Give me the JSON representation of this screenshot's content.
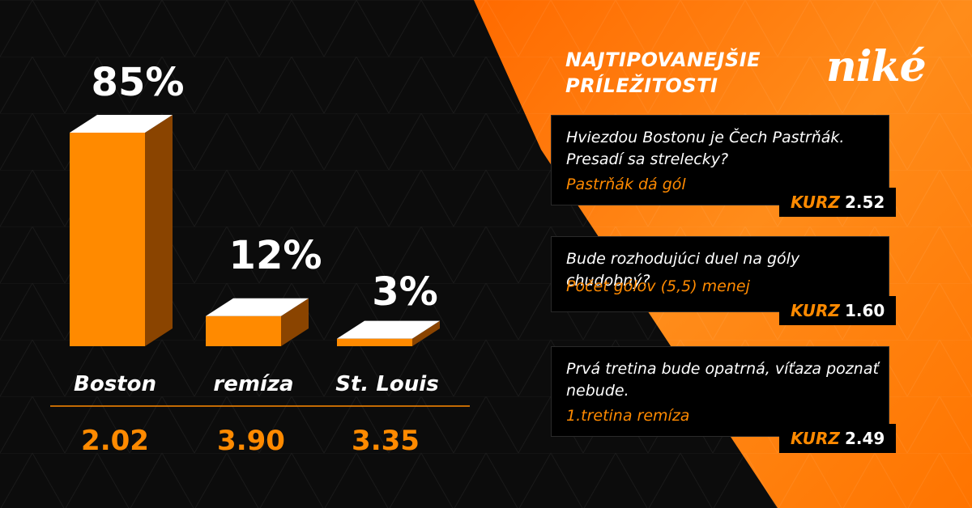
{
  "brand": {
    "logo_text": "niké"
  },
  "headline": {
    "line1": "NAJTIPOVANEJŠIE",
    "line2": "PRÍLEŽITOSTI"
  },
  "chart_data": {
    "type": "bar",
    "categories": [
      "Boston",
      "remíza",
      "St. Louis"
    ],
    "values": [
      85,
      12,
      3
    ],
    "value_labels": [
      "85%",
      "12%",
      "3%"
    ],
    "odds": [
      "2.02",
      "3.90",
      "3.35"
    ],
    "ylim": [
      0,
      85
    ],
    "bar_color": "#ff8a00",
    "side_color": "#8a4400",
    "top_color": "#ffffff"
  },
  "tips": [
    {
      "question": "Hviezdou Bostonu je Čech Pastrňák. Presadí sa strelecky?",
      "pick": "Pastrňák dá gól",
      "odds_label": "KURZ",
      "odds": "2.52"
    },
    {
      "question": "Bude rozhodujúci duel na góly chudobný?",
      "pick": "Počet gólov (5,5) menej",
      "odds_label": "KURZ",
      "odds": "1.60"
    },
    {
      "question": "Prvá tretina bude opatrná, víťaza poznať nebude.",
      "pick": "1.tretina remíza",
      "odds_label": "KURZ",
      "odds": "2.49"
    }
  ],
  "colors": {
    "accent": "#ff8a00",
    "dark": "#0c0c0c",
    "orange_bg": "#ff7a00"
  }
}
